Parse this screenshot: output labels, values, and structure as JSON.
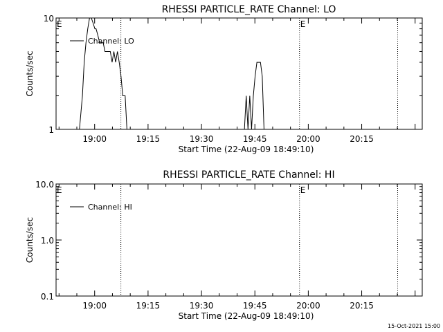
{
  "footer": {
    "timestamp": "15-Oct-2021 15:00"
  },
  "chart_data": [
    {
      "type": "line",
      "title": "RHESSI PARTICLE_RATE Channel: LO",
      "xlabel": "Start Time (22-Aug-09 18:49:10)",
      "ylabel": "Counts/sec",
      "yscale": "log",
      "xlim": [
        "18:49:10",
        "20:32:00"
      ],
      "ylim": [
        1,
        10
      ],
      "y_ticks": [
        1,
        10
      ],
      "y_tick_labels": [
        "1",
        "10"
      ],
      "x_ticks": [
        "19:00",
        "19:15",
        "19:30",
        "19:45",
        "20:00",
        "20:15"
      ],
      "grid": false,
      "legend": "upper-left",
      "markers": [
        {
          "time": "19:57:32",
          "label": "E"
        },
        {
          "time": "20:25:06",
          "label": ""
        }
      ],
      "start_marker": {
        "time": "18:49:10",
        "label": "E"
      },
      "dotted_lines": [
        "19:07:22",
        "19:57:32",
        "20:25:06"
      ],
      "series": [
        {
          "name": "Channel: LO",
          "x": [
            "18:55:44",
            "18:56:34",
            "18:57:04",
            "18:57:34",
            "18:58:04",
            "18:58:34",
            "18:59:04",
            "18:59:34",
            "19:00:04",
            "19:00:24",
            "19:00:54",
            "19:01:24",
            "19:01:54",
            "19:02:24",
            "19:02:54",
            "19:03:24",
            "19:03:54",
            "19:04:24",
            "19:04:54",
            "19:05:24",
            "19:05:54",
            "19:06:24",
            "19:06:54",
            "19:07:24",
            "19:07:54",
            "19:08:34",
            "19:09:04",
            "19:10:04"
          ],
          "y": [
            1,
            2,
            4,
            6,
            8,
            10,
            10,
            9,
            8,
            8,
            7,
            6,
            6,
            6,
            5,
            5,
            5,
            5,
            4,
            5,
            4,
            5,
            4,
            3,
            2,
            2,
            1,
            1
          ],
          "x2": [
            "19:42:04",
            "19:42:34",
            "19:43:04",
            "19:43:34",
            "19:44:04",
            "19:44:34",
            "19:45:04",
            "19:45:34",
            "19:46:04",
            "19:46:34",
            "19:47:04",
            "19:47:34",
            "19:48:04"
          ],
          "y2": [
            1,
            2,
            1,
            2,
            1,
            2,
            3,
            4,
            4,
            4,
            3,
            1,
            1
          ]
        }
      ]
    },
    {
      "type": "line",
      "title": "RHESSI PARTICLE_RATE Channel: HI",
      "xlabel": "Start Time (22-Aug-09 18:49:10)",
      "ylabel": "Counts/sec",
      "yscale": "log",
      "xlim": [
        "18:49:10",
        "20:32:00"
      ],
      "ylim": [
        0.1,
        10
      ],
      "y_ticks": [
        0.1,
        1,
        10
      ],
      "y_tick_labels": [
        "0.1",
        "1.0",
        "10.0"
      ],
      "x_ticks": [
        "19:00",
        "19:15",
        "19:30",
        "19:45",
        "20:00",
        "20:15"
      ],
      "grid": false,
      "legend": "upper-left",
      "markers": [
        {
          "time": "19:57:32",
          "label": "E"
        },
        {
          "time": "20:25:06",
          "label": ""
        }
      ],
      "start_marker": {
        "time": "18:49:10",
        "label": "E"
      },
      "dotted_lines": [
        "19:07:22",
        "19:57:32",
        "20:25:06"
      ],
      "series": [
        {
          "name": "Channel: HI",
          "x": [],
          "y": []
        }
      ]
    }
  ]
}
